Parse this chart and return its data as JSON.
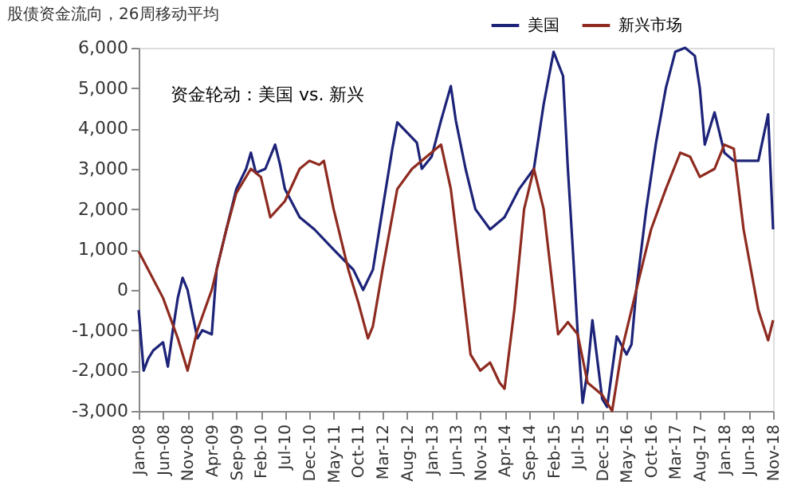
{
  "chart_data": {
    "type": "line",
    "title": "股债资金流向，26周移动平均",
    "annotations": [
      "资金轮动：美国 vs. 新兴"
    ],
    "ylim": [
      -3000,
      6000
    ],
    "yticks": [
      {
        "value": -3000,
        "label": "-3,000"
      },
      {
        "value": -2000,
        "label": "-2,000"
      },
      {
        "value": -1000,
        "label": "-1,000"
      },
      0,
      {
        "value": 1000,
        "label": "1,000"
      },
      {
        "value": 2000,
        "label": "2,000"
      },
      {
        "value": 3000,
        "label": "3,000"
      },
      {
        "value": 4000,
        "label": "4,000"
      },
      {
        "value": 5000,
        "label": "5,000"
      },
      {
        "value": 6000,
        "label": "6,000"
      }
    ],
    "xlim": [
      "2008-01",
      "2018-11"
    ],
    "xticks": [
      {
        "value": "2008-01",
        "label": "Jan-08"
      },
      {
        "value": "2008-06",
        "label": "Jun-08"
      },
      {
        "value": "2008-11",
        "label": "Nov-08"
      },
      {
        "value": "2009-04",
        "label": "Apr-09"
      },
      {
        "value": "2009-09",
        "label": "Sep-09"
      },
      {
        "value": "2010-02",
        "label": "Feb-10"
      },
      {
        "value": "2010-07",
        "label": "Jul-10"
      },
      {
        "value": "2010-12",
        "label": "Dec-10"
      },
      {
        "value": "2011-05",
        "label": "May-11"
      },
      {
        "value": "2011-10",
        "label": "Oct-11"
      },
      {
        "value": "2012-03",
        "label": "Mar-12"
      },
      {
        "value": "2012-08",
        "label": "Aug-12"
      },
      {
        "value": "2013-01",
        "label": "Jan-13"
      },
      {
        "value": "2013-06",
        "label": "Jun-13"
      },
      {
        "value": "2013-11",
        "label": "Nov-13"
      },
      {
        "value": "2014-04",
        "label": "Apr-14"
      },
      {
        "value": "2014-09",
        "label": "Sep-14"
      },
      {
        "value": "2015-02",
        "label": "Feb-15"
      },
      {
        "value": "2015-07",
        "label": "Jul-15"
      },
      {
        "value": "2015-12",
        "label": "Dec-15"
      },
      {
        "value": "2016-05",
        "label": "May-16"
      },
      {
        "value": "2016-10",
        "label": "Oct-16"
      },
      {
        "value": "2017-03",
        "label": "Mar-17"
      },
      {
        "value": "2017-08",
        "label": "Aug-17"
      },
      {
        "value": "2018-01",
        "label": "Jan-18"
      },
      {
        "value": "2018-06",
        "label": "Jun-18"
      },
      {
        "value": "2018-11",
        "label": "Nov-18"
      }
    ],
    "grid": false,
    "legend": "top right",
    "marker": "none",
    "line_style": "solid",
    "series": [
      {
        "name": "美国",
        "color": "#1c2378",
        "x": [
          "2008-01",
          "2008-02",
          "2008-03",
          "2008-04",
          "2008-05",
          "2008-06",
          "2008-07",
          "2008-08",
          "2008-09",
          "2008-10",
          "2008-11",
          "2008-12",
          "2009-01",
          "2009-02",
          "2009-04",
          "2009-05",
          "2009-07",
          "2009-09",
          "2009-11",
          "2009-12",
          "2010-01",
          "2010-03",
          "2010-05",
          "2010-06",
          "2010-07",
          "2010-10",
          "2011-01",
          "2011-05",
          "2011-09",
          "2011-11",
          "2012-01",
          "2012-03",
          "2012-05",
          "2012-06",
          "2012-08",
          "2012-10",
          "2012-11",
          "2013-01",
          "2013-03",
          "2013-05",
          "2013-06",
          "2013-08",
          "2013-10",
          "2014-01",
          "2014-04",
          "2014-07",
          "2014-10",
          "2014-12",
          "2015-02",
          "2015-04",
          "2015-05",
          "2015-06",
          "2015-07",
          "2015-08",
          "2015-09",
          "2015-10",
          "2015-12",
          "2016-01",
          "2016-03",
          "2016-05",
          "2016-06",
          "2016-07",
          "2016-09",
          "2016-11",
          "2017-01",
          "2017-03",
          "2017-05",
          "2017-07",
          "2017-08",
          "2017-09",
          "2017-11",
          "2018-01",
          "2018-03",
          "2018-08",
          "2018-10",
          "2018-11"
        ],
        "values": [
          -500,
          -2000,
          -1700,
          -1500,
          -1400,
          -1300,
          -1900,
          -1000,
          -200,
          300,
          0,
          -600,
          -1200,
          -1000,
          -1100,
          500,
          1500,
          2500,
          3000,
          3400,
          2900,
          3000,
          3600,
          3100,
          2500,
          1800,
          1500,
          1000,
          500,
          0,
          500,
          2000,
          3500,
          4150,
          3900,
          3650,
          3000,
          3300,
          4200,
          5050,
          4200,
          3000,
          2000,
          1500,
          1800,
          2500,
          3000,
          4600,
          5900,
          5300,
          3000,
          1000,
          -1050,
          -2800,
          -2000,
          -750,
          -2700,
          -2900,
          -1150,
          -1600,
          -1350,
          0,
          2000,
          3650,
          5000,
          5900,
          6000,
          5800,
          5000,
          3600,
          4400,
          3400,
          3200,
          3200,
          4350,
          1500
        ]
      },
      {
        "name": "新兴市场",
        "color": "#8e2b20",
        "x": [
          "2008-01",
          "2008-03",
          "2008-06",
          "2008-09",
          "2008-11",
          "2009-01",
          "2009-04",
          "2009-07",
          "2009-09",
          "2009-12",
          "2010-02",
          "2010-04",
          "2010-07",
          "2010-10",
          "2010-12",
          "2011-02",
          "2011-03",
          "2011-05",
          "2011-08",
          "2011-10",
          "2011-12",
          "2012-01",
          "2012-03",
          "2012-06",
          "2012-09",
          "2013-03",
          "2013-05",
          "2013-07",
          "2013-09",
          "2013-11",
          "2014-01",
          "2014-03",
          "2014-04",
          "2014-06",
          "2014-08",
          "2014-10",
          "2014-12",
          "2015-03",
          "2015-05",
          "2015-07",
          "2015-09",
          "2015-12",
          "2016-02",
          "2016-04",
          "2016-07",
          "2016-10",
          "2017-01",
          "2017-04",
          "2017-06",
          "2017-08",
          "2017-11",
          "2018-01",
          "2018-03",
          "2018-05",
          "2018-08",
          "2018-10",
          "2018-11"
        ],
        "values": [
          950,
          500,
          -200,
          -1200,
          -2000,
          -1000,
          0,
          1500,
          2400,
          3000,
          2800,
          1800,
          2200,
          3000,
          3200,
          3100,
          3200,
          2000,
          500,
          -300,
          -1200,
          -900,
          500,
          2500,
          3000,
          3600,
          2500,
          500,
          -1600,
          -2000,
          -1800,
          -2300,
          -2450,
          -500,
          2000,
          3000,
          2000,
          -1100,
          -800,
          -1100,
          -2300,
          -2600,
          -3000,
          -1500,
          0,
          1500,
          2500,
          3400,
          3300,
          2800,
          3000,
          3600,
          3500,
          1500,
          -500,
          -1250,
          -750
        ]
      }
    ]
  }
}
